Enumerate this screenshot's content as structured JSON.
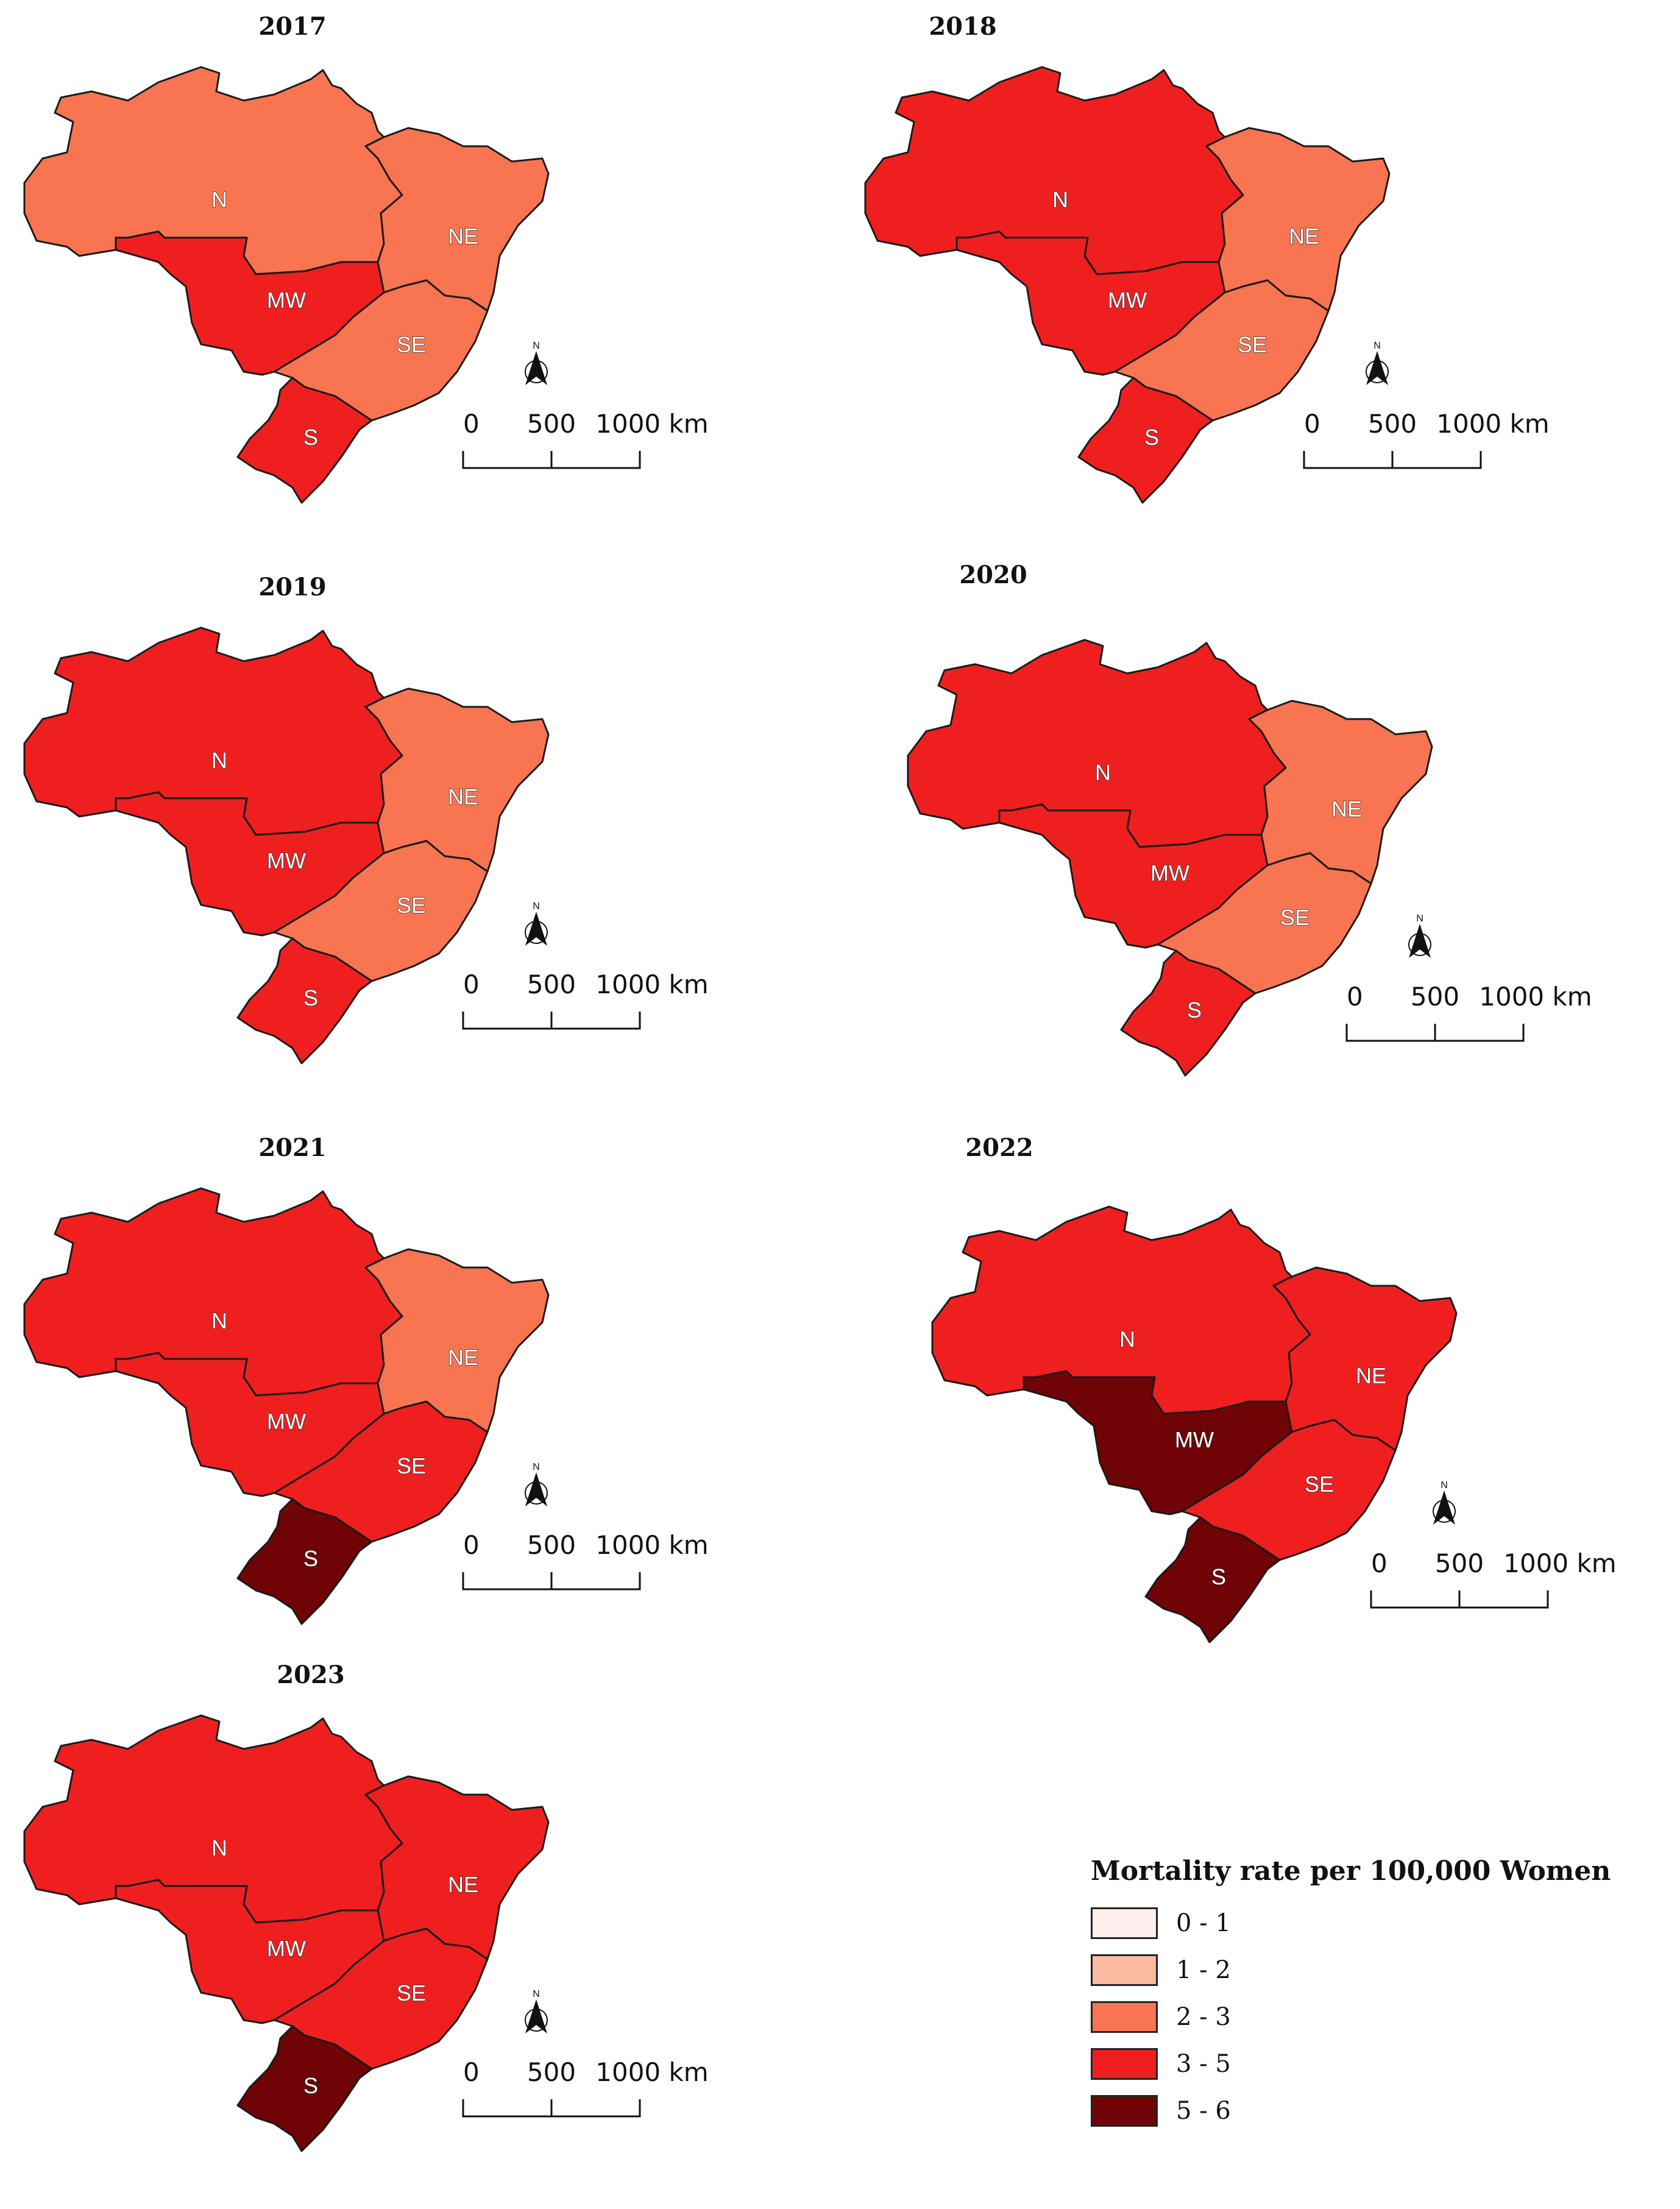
{
  "colors": {
    "class_0_1": "#fef0ea",
    "class_1_2": "#fcbba1",
    "class_2_3": "#f97552",
    "class_3_5": "#ef1f20",
    "class_5_6": "#6f0305",
    "border": "#1a1a1a"
  },
  "panels": [
    {
      "year": "2017",
      "regions": {
        "N": "2 - 3",
        "NE": "2 - 3",
        "MW": "3 - 5",
        "SE": "2 - 3",
        "S": "3 - 5"
      }
    },
    {
      "year": "2018",
      "regions": {
        "N": "3 - 5",
        "NE": "2 - 3",
        "MW": "3 - 5",
        "SE": "2 - 3",
        "S": "3 - 5"
      }
    },
    {
      "year": "2019",
      "regions": {
        "N": "3 - 5",
        "NE": "2 - 3",
        "MW": "3 - 5",
        "SE": "2 - 3",
        "S": "3 - 5"
      }
    },
    {
      "year": "2020",
      "regions": {
        "N": "3 - 5",
        "NE": "2 - 3",
        "MW": "3 - 5",
        "SE": "2 - 3",
        "S": "3 - 5"
      }
    },
    {
      "year": "2021",
      "regions": {
        "N": "3 - 5",
        "NE": "2 - 3",
        "MW": "3 - 5",
        "SE": "3 - 5",
        "S": "5 - 6"
      }
    },
    {
      "year": "2022",
      "regions": {
        "N": "3 - 5",
        "NE": "3 - 5",
        "MW": "5 - 6",
        "SE": "3 - 5",
        "S": "5 - 6"
      }
    },
    {
      "year": "2023",
      "regions": {
        "N": "3 - 5",
        "NE": "3 - 5",
        "MW": "3 - 5",
        "SE": "3 - 5",
        "S": "5 - 6"
      }
    }
  ],
  "region_labels": {
    "N": "N",
    "NE": "NE",
    "MW": "MW",
    "SE": "SE",
    "S": "S"
  },
  "scale_bar": {
    "t0": "0",
    "t1": "500",
    "t2": "1000 km"
  },
  "north_arrow": {
    "letter": "N",
    "icon": "north-arrow-icon"
  },
  "legend": {
    "title": "Mortality rate per 100,000 Women",
    "items": [
      {
        "label": "0 - 1",
        "color": "#fef0ea"
      },
      {
        "label": "1 - 2",
        "color": "#fcbba1"
      },
      {
        "label": "2 - 3",
        "color": "#f97552"
      },
      {
        "label": "3 - 5",
        "color": "#ef1f20"
      },
      {
        "label": "5 - 6",
        "color": "#6f0305"
      }
    ]
  }
}
